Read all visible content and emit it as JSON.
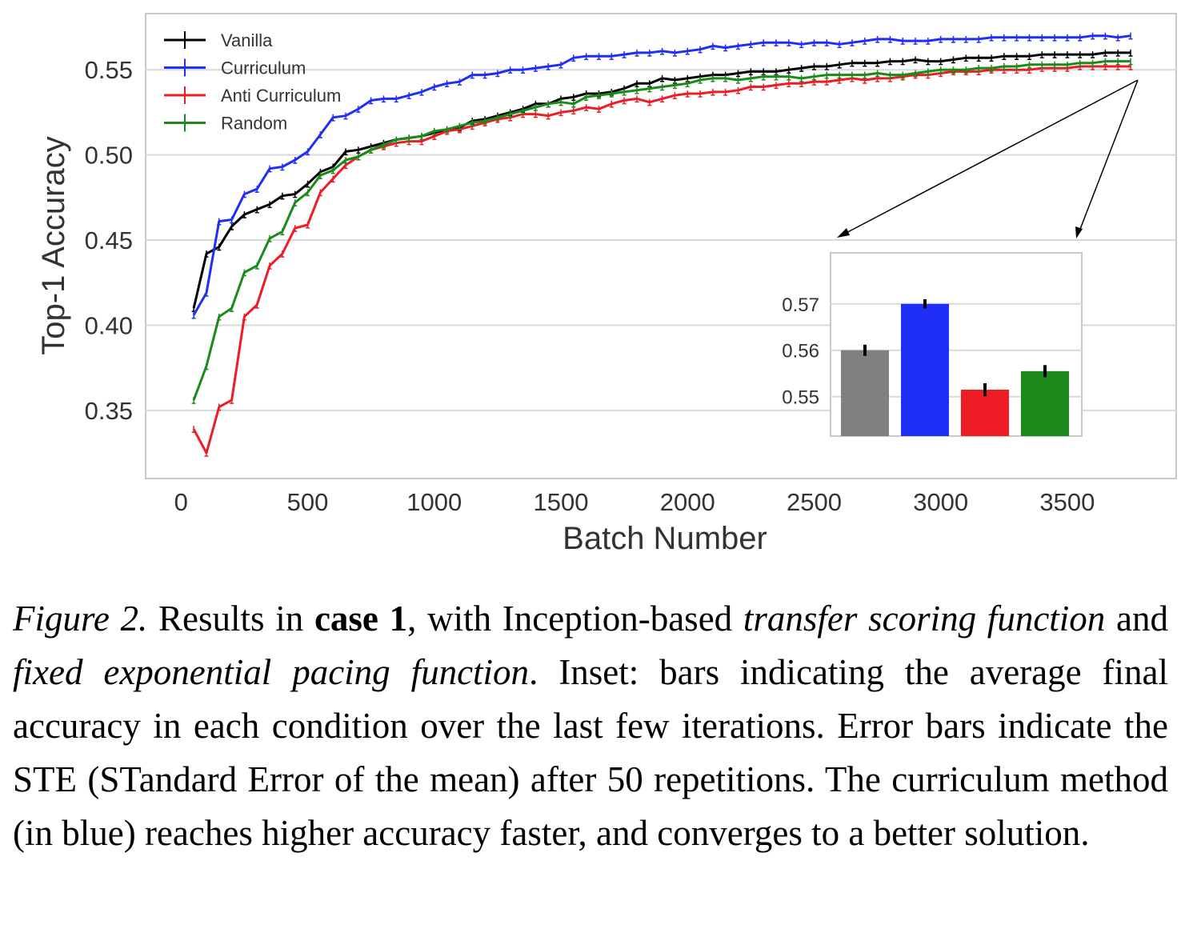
{
  "chart_data": [
    {
      "type": "line",
      "xlabel": "Batch Number",
      "ylabel": "Top-1 Accuracy",
      "xlim": [
        -140,
        3930
      ],
      "ylim": [
        0.31,
        0.583
      ],
      "xticks": [
        0,
        500,
        1000,
        1500,
        2000,
        2500,
        3000,
        3500
      ],
      "yticks": [
        0.35,
        0.4,
        0.45,
        0.5,
        0.55
      ],
      "ytick_labels": [
        "0.35",
        "0.40",
        "0.45",
        "0.50",
        "0.55"
      ],
      "grid": true,
      "legend_position": "top-left",
      "x": [
        50,
        100,
        150,
        200,
        250,
        300,
        350,
        400,
        450,
        500,
        550,
        600,
        650,
        700,
        750,
        800,
        850,
        900,
        950,
        1000,
        1050,
        1100,
        1150,
        1200,
        1250,
        1300,
        1350,
        1400,
        1450,
        1500,
        1550,
        1600,
        1650,
        1700,
        1750,
        1800,
        1850,
        1900,
        1950,
        2000,
        2050,
        2100,
        2150,
        2200,
        2250,
        2300,
        2350,
        2400,
        2450,
        2500,
        2550,
        2600,
        2650,
        2700,
        2750,
        2800,
        2850,
        2900,
        2950,
        3000,
        3050,
        3100,
        3150,
        3200,
        3250,
        3300,
        3350,
        3400,
        3450,
        3500,
        3550,
        3600,
        3650,
        3700,
        3750
      ],
      "series": [
        {
          "name": "Vanilla",
          "color": "#000000",
          "values": [
            0.41,
            0.442,
            0.446,
            0.458,
            0.465,
            0.468,
            0.471,
            0.476,
            0.477,
            0.483,
            0.49,
            0.493,
            0.502,
            0.503,
            0.505,
            0.507,
            0.509,
            0.51,
            0.511,
            0.513,
            0.515,
            0.516,
            0.52,
            0.521,
            0.523,
            0.525,
            0.527,
            0.53,
            0.53,
            0.533,
            0.534,
            0.536,
            0.536,
            0.537,
            0.539,
            0.542,
            0.542,
            0.545,
            0.544,
            0.545,
            0.546,
            0.547,
            0.547,
            0.548,
            0.549,
            0.549,
            0.549,
            0.55,
            0.551,
            0.552,
            0.552,
            0.553,
            0.554,
            0.554,
            0.554,
            0.555,
            0.555,
            0.556,
            0.555,
            0.555,
            0.556,
            0.557,
            0.557,
            0.557,
            0.558,
            0.558,
            0.558,
            0.559,
            0.559,
            0.559,
            0.559,
            0.559,
            0.56,
            0.56,
            0.56
          ]
        },
        {
          "name": "Curriculum",
          "color": "#1f2ff5",
          "values": [
            0.406,
            0.419,
            0.461,
            0.462,
            0.477,
            0.48,
            0.492,
            0.493,
            0.497,
            0.502,
            0.512,
            0.522,
            0.523,
            0.527,
            0.532,
            0.533,
            0.533,
            0.535,
            0.537,
            0.54,
            0.542,
            0.543,
            0.547,
            0.547,
            0.548,
            0.55,
            0.55,
            0.551,
            0.552,
            0.553,
            0.557,
            0.558,
            0.558,
            0.558,
            0.559,
            0.56,
            0.56,
            0.561,
            0.56,
            0.561,
            0.562,
            0.564,
            0.563,
            0.564,
            0.565,
            0.566,
            0.566,
            0.566,
            0.565,
            0.566,
            0.566,
            0.565,
            0.566,
            0.567,
            0.568,
            0.568,
            0.567,
            0.567,
            0.567,
            0.568,
            0.568,
            0.568,
            0.568,
            0.569,
            0.569,
            0.569,
            0.569,
            0.569,
            0.569,
            0.569,
            0.569,
            0.57,
            0.57,
            0.569,
            0.57
          ]
        },
        {
          "name": "Anti Curriculum",
          "color": "#ee1c25",
          "values": [
            0.339,
            0.325,
            0.352,
            0.356,
            0.405,
            0.412,
            0.435,
            0.442,
            0.457,
            0.459,
            0.478,
            0.486,
            0.494,
            0.499,
            0.503,
            0.505,
            0.507,
            0.508,
            0.508,
            0.511,
            0.514,
            0.515,
            0.517,
            0.519,
            0.521,
            0.522,
            0.524,
            0.524,
            0.523,
            0.525,
            0.526,
            0.528,
            0.527,
            0.53,
            0.532,
            0.533,
            0.531,
            0.533,
            0.535,
            0.536,
            0.536,
            0.537,
            0.537,
            0.538,
            0.54,
            0.54,
            0.541,
            0.542,
            0.542,
            0.543,
            0.543,
            0.544,
            0.545,
            0.544,
            0.545,
            0.545,
            0.546,
            0.547,
            0.547,
            0.548,
            0.549,
            0.549,
            0.549,
            0.55,
            0.55,
            0.55,
            0.55,
            0.551,
            0.551,
            0.551,
            0.552,
            0.552,
            0.552,
            0.552,
            0.552
          ]
        },
        {
          "name": "Random",
          "color": "#1b8a1b",
          "values": [
            0.356,
            0.376,
            0.405,
            0.41,
            0.431,
            0.435,
            0.451,
            0.455,
            0.472,
            0.478,
            0.488,
            0.491,
            0.497,
            0.499,
            0.503,
            0.506,
            0.509,
            0.51,
            0.511,
            0.514,
            0.515,
            0.517,
            0.519,
            0.52,
            0.522,
            0.524,
            0.526,
            0.528,
            0.53,
            0.531,
            0.53,
            0.534,
            0.535,
            0.536,
            0.537,
            0.538,
            0.539,
            0.54,
            0.541,
            0.542,
            0.544,
            0.545,
            0.545,
            0.544,
            0.545,
            0.546,
            0.546,
            0.546,
            0.545,
            0.546,
            0.547,
            0.547,
            0.547,
            0.547,
            0.548,
            0.547,
            0.547,
            0.548,
            0.549,
            0.55,
            0.55,
            0.55,
            0.551,
            0.551,
            0.552,
            0.552,
            0.553,
            0.553,
            0.553,
            0.553,
            0.554,
            0.554,
            0.555,
            0.555,
            0.555
          ]
        }
      ]
    },
    {
      "type": "bar",
      "categories": [
        "Vanilla",
        "Curriculum",
        "Anti Curriculum",
        "Random"
      ],
      "values": [
        0.56,
        0.57,
        0.5515,
        0.5555
      ],
      "errors": [
        0.0012,
        0.001,
        0.0014,
        0.0013
      ],
      "colors": [
        "#808080",
        "#1f2ff5",
        "#ee1c25",
        "#1b8a1b"
      ],
      "ylim": [
        0.5415,
        0.581
      ],
      "yticks": [
        0.55,
        0.56,
        0.57
      ],
      "ytick_labels": [
        "0.55",
        "0.56",
        "0.57"
      ],
      "grid": true
    }
  ],
  "caption": {
    "lead": "Figure 2.",
    "t1": " Results in ",
    "bold": "case 1",
    "t2": ", with Inception-based ",
    "em1": "transfer scoring function",
    "t3": " and ",
    "em2": "fixed exponential pacing function",
    "t4": ". Inset: bars indicating the average final accuracy in each condition over the last few iterations. Error bars indicate the STE (STandard Error of the mean) after 50 repetitions. The curriculum method (in blue) reaches higher accuracy faster, and converges to a better solution."
  }
}
